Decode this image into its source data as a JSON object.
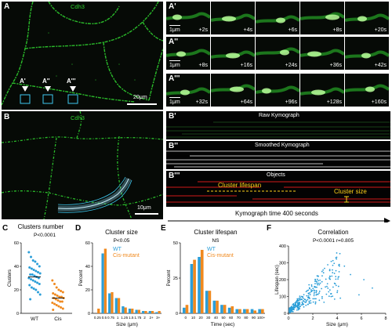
{
  "panels": {
    "A": {
      "letter": "A",
      "stain": "Cdh3",
      "scale": "20μm",
      "markers": [
        "A'",
        "A''",
        "A'''"
      ]
    },
    "B": {
      "letter": "B",
      "stain": "Cdh3",
      "scale": "10μm"
    },
    "A1": {
      "letter": "A'",
      "scale": "1μm",
      "times": [
        "+2s",
        "+4s",
        "+6s",
        "+8s",
        "+20s"
      ]
    },
    "A2": {
      "letter": "A''",
      "scale": "1μm",
      "times": [
        "+8s",
        "+16s",
        "+24s",
        "+36s",
        "+42s"
      ]
    },
    "A3": {
      "letter": "A'''",
      "scale": "1μm",
      "times": [
        "+32s",
        "+64s",
        "+96s",
        "+128s",
        "+160s"
      ]
    },
    "B1": {
      "letter": "B'",
      "title": "Raw Kymograph"
    },
    "B2": {
      "letter": "B''",
      "title": "Smoothed Kymograph"
    },
    "B3": {
      "letter": "B'''",
      "title": "Objects",
      "lifespan_label": "Cluster lifespan",
      "size_label": "Cluster size"
    },
    "kymo_axis": "Kymograph time 400 seconds"
  },
  "colors": {
    "wt": "#2b9ed8",
    "cis": "#f0891e",
    "membrane": "#2fd02f",
    "lifespan": "#ffd21a"
  },
  "chart_data": [
    {
      "panel": "C",
      "type": "scatter",
      "title": "Clusters number",
      "subtitle": "P<0.0001",
      "ylabel": "Clusters",
      "categories": [
        "WT",
        "Cis"
      ],
      "ylim": [
        0,
        60
      ],
      "yticks": [
        0,
        20,
        40,
        60
      ],
      "series": [
        {
          "name": "WT",
          "mean": 31,
          "values": [
            52,
            48,
            45,
            44,
            42,
            40,
            39,
            38,
            37,
            36,
            35,
            34,
            33,
            33,
            32,
            31,
            30,
            30,
            29,
            28,
            27,
            26,
            25,
            24,
            22,
            21,
            20,
            18,
            16,
            12
          ]
        },
        {
          "name": "Cis",
          "mean": 13,
          "values": [
            28,
            25,
            22,
            20,
            19,
            18,
            17,
            16,
            15,
            14,
            14,
            13,
            13,
            12,
            11,
            10,
            10,
            9,
            8,
            7,
            6,
            5,
            4,
            3
          ]
        }
      ]
    },
    {
      "panel": "D",
      "type": "bar",
      "title": "Cluster size",
      "subtitle": "P<0.05",
      "xlabel": "Size (μm)",
      "ylabel": "Percent",
      "ylim": [
        0,
        60
      ],
      "yticks": [
        0,
        20,
        40,
        60
      ],
      "categories": [
        "0.25",
        "0.5",
        "0.75",
        "1",
        "1.25",
        "1.5",
        "1.75",
        "2",
        "2+",
        "3+"
      ],
      "legend": [
        "WT",
        "Cis-mutant"
      ],
      "series": [
        {
          "name": "WT",
          "values": [
            0,
            51,
            17,
            13,
            6,
            4,
            3,
            2,
            2,
            1
          ]
        },
        {
          "name": "Cis-mutant",
          "values": [
            4,
            55,
            18,
            13,
            5,
            4,
            3,
            2,
            2,
            2
          ]
        }
      ]
    },
    {
      "panel": "E",
      "type": "bar",
      "title": "Cluster lifespan",
      "subtitle": "NS",
      "xlabel": "Time (sec)",
      "ylabel": "Percent",
      "ylim": [
        0,
        50
      ],
      "yticks": [
        0,
        25,
        50
      ],
      "categories": [
        "0",
        "10",
        "20",
        "30",
        "40",
        "50",
        "60",
        "70",
        "80",
        "90",
        "100+"
      ],
      "legend": [
        "WT",
        "Cis-mutant"
      ],
      "series": [
        {
          "name": "WT",
          "values": [
            4,
            35,
            40,
            16,
            9,
            6,
            4,
            3,
            3,
            3,
            3
          ]
        },
        {
          "name": "Cis-mutant",
          "values": [
            6,
            38,
            45,
            16,
            9,
            6,
            5,
            3,
            3,
            2,
            3
          ]
        }
      ]
    },
    {
      "panel": "F",
      "type": "scatter",
      "title": "Correlation",
      "subtitle": "P<0.0001 r=0.805",
      "xlabel": "Size (μm)",
      "ylabel": "Lifespan (sec)",
      "xlim": [
        0,
        8
      ],
      "ylim": [
        0,
        400
      ],
      "xticks": [
        0,
        2,
        4,
        6,
        8
      ],
      "yticks": [
        0,
        100,
        200,
        300,
        400
      ]
    }
  ]
}
